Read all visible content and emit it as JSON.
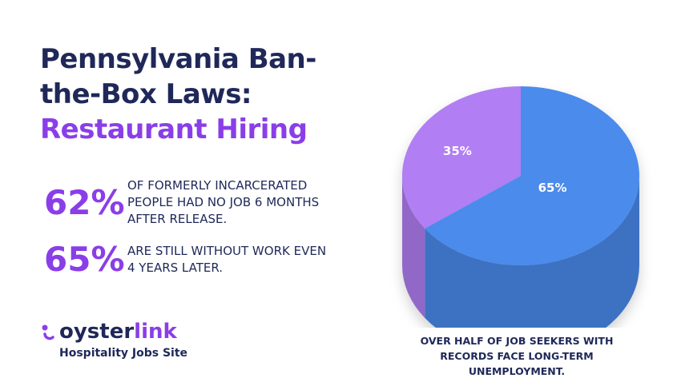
{
  "header": {
    "title_main": "Pennsylvania Ban-the-Box Laws:",
    "title_accent": "Restaurant Hiring"
  },
  "stats": [
    {
      "figure": "62%",
      "text": "OF FORMERLY INCARCERATED PEOPLE HAD NO JOB 6 MONTHS AFTER RELEASE."
    },
    {
      "figure": "65%",
      "text": "ARE STILL WITHOUT WORK EVEN 4 YEARS LATER."
    }
  ],
  "logo": {
    "brand_dark": "oyster",
    "brand_accent": "link",
    "tagline": "Hospitality Jobs Site"
  },
  "chart_data": {
    "type": "pie",
    "values": [
      35,
      65
    ],
    "value_labels": [
      "35%",
      "65%"
    ],
    "colors": [
      "#b17ef3",
      "#4b8bec"
    ],
    "caption": "OVER HALF OF JOB SEEKERS WITH RECORDS FACE LONG-TERM UNEMPLOYMENT."
  }
}
